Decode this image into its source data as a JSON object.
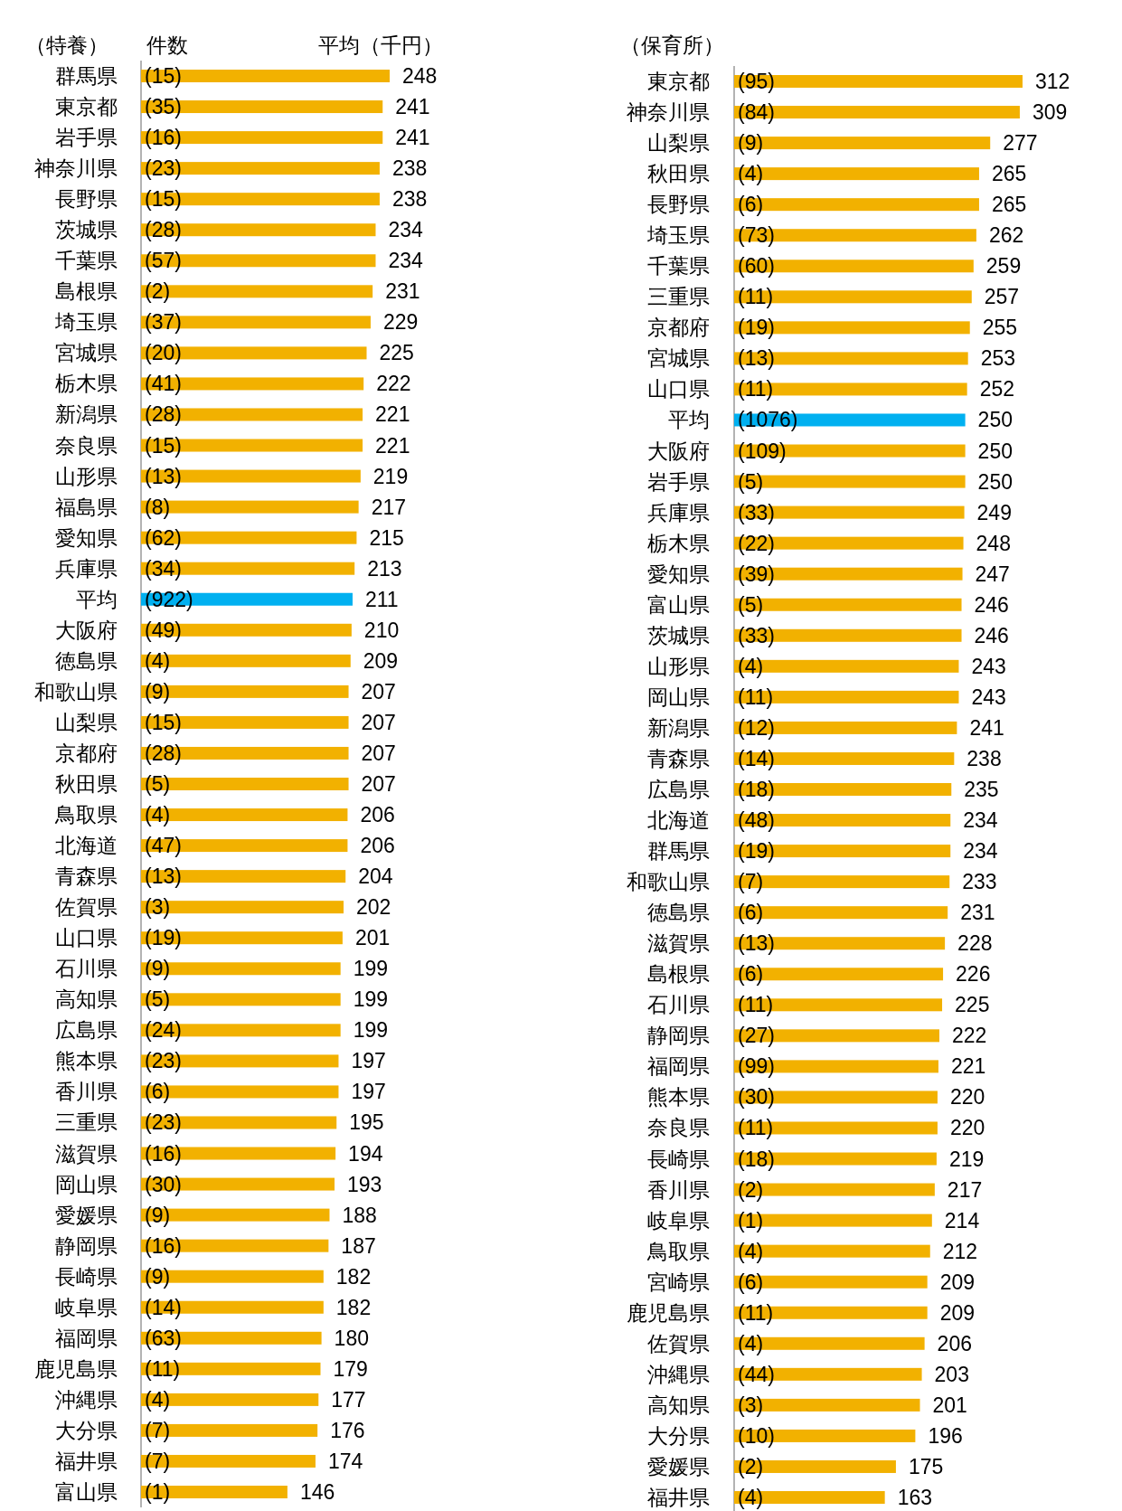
{
  "chart_data": [
    {
      "type": "bar",
      "orientation": "horizontal",
      "title": "（特養）",
      "data_labels": true,
      "categories": [
        "群馬県",
        "東京都",
        "岩手県",
        "神奈川県",
        "長野県",
        "茨城県",
        "千葉県",
        "島根県",
        "埼玉県",
        "宮城県",
        "栃木県",
        "新潟県",
        "奈良県",
        "山形県",
        "福島県",
        "愛知県",
        "兵庫県",
        "平均",
        "大阪府",
        "徳島県",
        "和歌山県",
        "山梨県",
        "京都府",
        "秋田県",
        "鳥取県",
        "北海道",
        "青森県",
        "佐賀県",
        "山口県",
        "石川県",
        "高知県",
        "広島県",
        "熊本県",
        "香川県",
        "三重県",
        "滋賀県",
        "岡山県",
        "愛媛県",
        "静岡県",
        "長崎県",
        "岐阜県",
        "福岡県",
        "鹿児島県",
        "沖縄県",
        "大分県",
        "福井県",
        "富山県"
      ],
      "values": [
        248,
        241,
        241,
        238,
        238,
        234,
        234,
        231,
        229,
        225,
        222,
        221,
        221,
        219,
        217,
        215,
        213,
        211,
        210,
        209,
        207,
        207,
        207,
        207,
        206,
        206,
        204,
        202,
        201,
        199,
        199,
        199,
        197,
        197,
        195,
        194,
        193,
        188,
        187,
        182,
        182,
        180,
        179,
        177,
        176,
        174,
        146
      ],
      "colors": [
        "#f2b100",
        "#f2b100",
        "#f2b100",
        "#f2b100",
        "#f2b100",
        "#f2b100",
        "#f2b100",
        "#f2b100",
        "#f2b100",
        "#f2b100",
        "#f2b100",
        "#f2b100",
        "#f2b100",
        "#f2b100",
        "#f2b100",
        "#f2b100",
        "#f2b100",
        "#00b0f0",
        "#f2b100",
        "#f2b100",
        "#f2b100",
        "#f2b100",
        "#f2b100",
        "#f2b100",
        "#f2b100",
        "#f2b100",
        "#f2b100",
        "#f2b100",
        "#f2b100",
        "#f2b100",
        "#f2b100",
        "#f2b100",
        "#f2b100",
        "#f2b100",
        "#f2b100",
        "#f2b100",
        "#f2b100",
        "#f2b100",
        "#f2b100",
        "#f2b100",
        "#f2b100",
        "#f2b100",
        "#f2b100",
        "#f2b100",
        "#f2b100",
        "#f2b100",
        "#f2b100"
      ],
      "annotations": [
        "件数",
        "平均（千円）",
        "(15)",
        "(35)",
        "(16)",
        "(23)",
        "(15)",
        "(28)",
        "(57)",
        "(2)",
        "(37)",
        "(20)",
        "(41)",
        "(28)",
        "(15)",
        "(13)",
        "(8)",
        "(62)",
        "(34)",
        "(922)",
        "(49)",
        "(4)",
        "(9)",
        "(15)",
        "(28)",
        "(5)",
        "(4)",
        "(47)",
        "(13)",
        "(3)",
        "(19)",
        "(9)",
        "(5)",
        "(24)",
        "(23)",
        "(6)",
        "(23)",
        "(16)",
        "(30)",
        "(9)",
        "(16)",
        "(9)",
        "(14)",
        "(63)",
        "(11)",
        "(4)",
        "(7)",
        "(7)",
        "(1)"
      ]
    },
    {
      "type": "bar",
      "orientation": "horizontal",
      "title": "（保育所）",
      "data_labels": true,
      "categories": [
        "東京都",
        "神奈川県",
        "山梨県",
        "秋田県",
        "長野県",
        "埼玉県",
        "千葉県",
        "三重県",
        "京都府",
        "宮城県",
        "山口県",
        "平均",
        "大阪府",
        "岩手県",
        "兵庫県",
        "栃木県",
        "愛知県",
        "富山県",
        "茨城県",
        "山形県",
        "岡山県",
        "新潟県",
        "青森県",
        "広島県",
        "北海道",
        "群馬県",
        "和歌山県",
        "徳島県",
        "滋賀県",
        "島根県",
        "石川県",
        "静岡県",
        "福岡県",
        "熊本県",
        "奈良県",
        "長崎県",
        "香川県",
        "岐阜県",
        "鳥取県",
        "宮崎県",
        "鹿児島県",
        "佐賀県",
        "沖縄県",
        "高知県",
        "大分県",
        "愛媛県",
        "福井県"
      ],
      "values": [
        312,
        309,
        277,
        265,
        265,
        262,
        259,
        257,
        255,
        253,
        252,
        250,
        250,
        250,
        249,
        248,
        247,
        246,
        246,
        243,
        243,
        241,
        238,
        235,
        234,
        234,
        233,
        231,
        228,
        226,
        225,
        222,
        221,
        220,
        220,
        219,
        217,
        214,
        212,
        209,
        209,
        206,
        203,
        201,
        196,
        175,
        163
      ],
      "colors": [
        "#f2b100",
        "#f2b100",
        "#f2b100",
        "#f2b100",
        "#f2b100",
        "#f2b100",
        "#f2b100",
        "#f2b100",
        "#f2b100",
        "#f2b100",
        "#f2b100",
        "#00b0f0",
        "#f2b100",
        "#f2b100",
        "#f2b100",
        "#f2b100",
        "#f2b100",
        "#f2b100",
        "#f2b100",
        "#f2b100",
        "#f2b100",
        "#f2b100",
        "#f2b100",
        "#f2b100",
        "#f2b100",
        "#f2b100",
        "#f2b100",
        "#f2b100",
        "#f2b100",
        "#f2b100",
        "#f2b100",
        "#f2b100",
        "#f2b100",
        "#f2b100",
        "#f2b100",
        "#f2b100",
        "#f2b100",
        "#f2b100",
        "#f2b100",
        "#f2b100",
        "#f2b100",
        "#f2b100",
        "#f2b100",
        "#f2b100",
        "#f2b100",
        "#f2b100",
        "#f2b100"
      ],
      "annotations": [
        "(95)",
        "(84)",
        "(9)",
        "(4)",
        "(6)",
        "(73)",
        "(60)",
        "(11)",
        "(19)",
        "(13)",
        "(11)",
        "(1076)",
        "(109)",
        "(5)",
        "(33)",
        "(22)",
        "(39)",
        "(5)",
        "(33)",
        "(4)",
        "(11)",
        "(12)",
        "(14)",
        "(18)",
        "(48)",
        "(19)",
        "(7)",
        "(6)",
        "(13)",
        "(6)",
        "(11)",
        "(27)",
        "(99)",
        "(30)",
        "(11)",
        "(18)",
        "(2)",
        "(1)",
        "(4)",
        "(6)",
        "(11)",
        "(4)",
        "(44)",
        "(3)",
        "(10)",
        "(2)",
        "(4)"
      ]
    }
  ]
}
